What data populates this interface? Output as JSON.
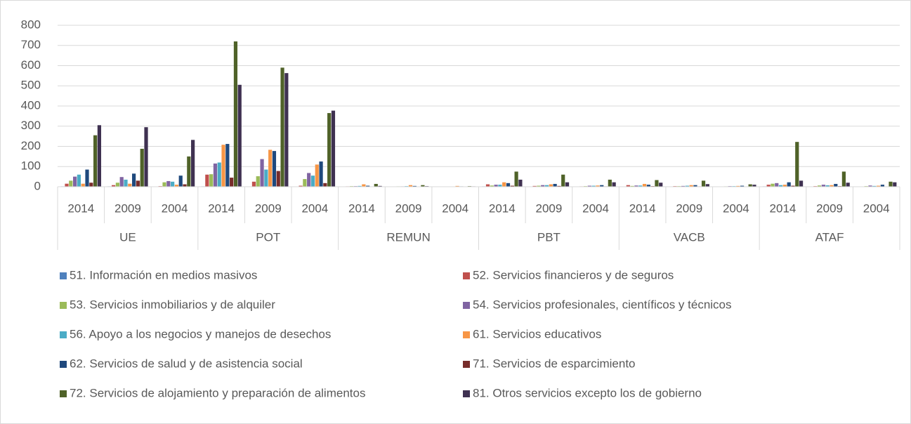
{
  "chart_data": {
    "type": "bar",
    "categories": [
      "2014",
      "2009",
      "2004",
      "2014",
      "2009",
      "2004",
      "2014",
      "2009",
      "2004",
      "2014",
      "2009",
      "2004",
      "2014",
      "2009",
      "2004",
      "2014",
      "2009",
      "2004"
    ],
    "groups": [
      "UE",
      "POT",
      "REMUN",
      "PBT",
      "VACB",
      "ATAF"
    ],
    "ylim": [
      0,
      800
    ],
    "yticks": [
      0,
      100,
      200,
      300,
      400,
      500,
      600,
      700,
      800
    ],
    "grid": true,
    "series": [
      {
        "name": "51. Información en medios masivos",
        "color": "#4f81bd",
        "values": [
          2,
          2,
          1,
          2,
          1,
          1,
          1,
          1,
          0,
          2,
          1,
          1,
          1,
          1,
          1,
          2,
          1,
          1
        ]
      },
      {
        "name": "52. Servicios financieros y de seguros",
        "color": "#c0504d",
        "values": [
          15,
          8,
          3,
          60,
          25,
          5,
          2,
          1,
          1,
          12,
          4,
          2,
          8,
          3,
          1,
          10,
          3,
          1
        ]
      },
      {
        "name": "53. Servicios inmobiliarios y de alquiler",
        "color": "#9bbb59",
        "values": [
          30,
          20,
          22,
          62,
          52,
          38,
          3,
          2,
          1,
          6,
          5,
          3,
          4,
          3,
          2,
          15,
          6,
          3
        ]
      },
      {
        "name": "54. Servicios profesionales, científicos y técnicos",
        "color": "#8064a2",
        "values": [
          50,
          48,
          28,
          115,
          137,
          68,
          3,
          2,
          1,
          10,
          8,
          5,
          6,
          4,
          3,
          18,
          10,
          6
        ]
      },
      {
        "name": "56. Apoyo a los negocios y manejos de desechos",
        "color": "#4bacc6",
        "values": [
          60,
          35,
          25,
          120,
          85,
          55,
          4,
          3,
          1,
          10,
          8,
          5,
          6,
          5,
          3,
          8,
          7,
          4
        ]
      },
      {
        "name": "61. Servicios educativos",
        "color": "#f79646",
        "values": [
          15,
          15,
          10,
          208,
          183,
          110,
          12,
          8,
          4,
          22,
          12,
          6,
          14,
          8,
          4,
          10,
          8,
          5
        ]
      },
      {
        "name": "62. Servicios de salud y de asistencia social",
        "color": "#1f497d",
        "values": [
          85,
          65,
          55,
          212,
          177,
          125,
          5,
          4,
          2,
          18,
          14,
          8,
          10,
          8,
          5,
          22,
          14,
          10
        ]
      },
      {
        "name": "71. Servicios de esparcimiento",
        "color": "#772c2a",
        "values": [
          20,
          30,
          12,
          45,
          78,
          18,
          1,
          1,
          0,
          5,
          4,
          2,
          3,
          2,
          1,
          5,
          3,
          1
        ]
      },
      {
        "name": "72. Servicios de alojamiento y preparación de alimentos",
        "color": "#4f6228",
        "values": [
          255,
          188,
          150,
          720,
          590,
          365,
          14,
          8,
          3,
          75,
          60,
          35,
          33,
          30,
          12,
          222,
          75,
          25
        ]
      },
      {
        "name": "81. Otros servicios excepto los de gobierno",
        "color": "#3f3151",
        "values": [
          305,
          295,
          232,
          505,
          563,
          377,
          4,
          3,
          2,
          35,
          22,
          22,
          20,
          13,
          10,
          30,
          20,
          22
        ]
      }
    ]
  }
}
